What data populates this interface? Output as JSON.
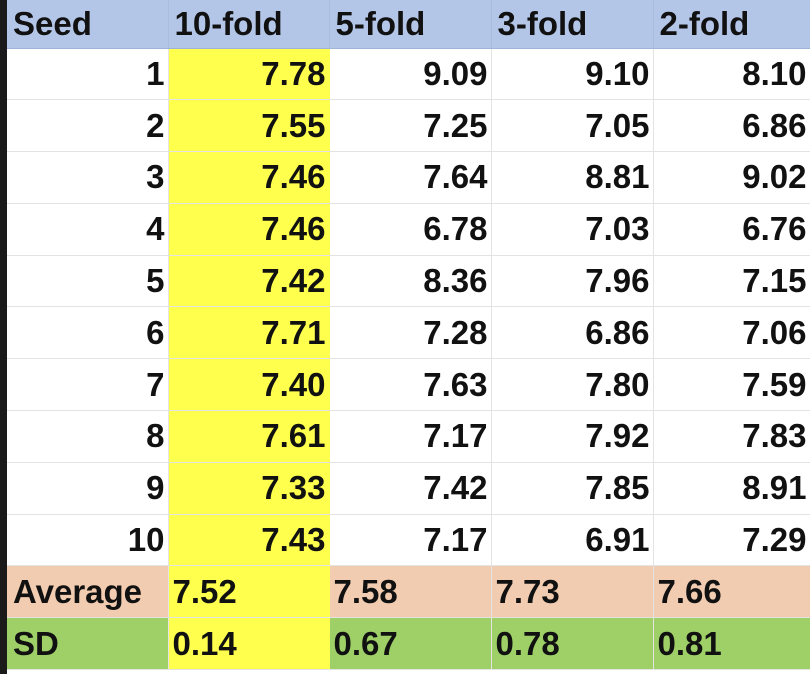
{
  "table": {
    "headers": [
      "Seed",
      "10-fold",
      "5-fold",
      "3-fold",
      "2-fold"
    ],
    "rows": [
      [
        "1",
        "7.78",
        "9.09",
        "9.10",
        "8.10"
      ],
      [
        "2",
        "7.55",
        "7.25",
        "7.05",
        "6.86"
      ],
      [
        "3",
        "7.46",
        "7.64",
        "8.81",
        "9.02"
      ],
      [
        "4",
        "7.46",
        "6.78",
        "7.03",
        "6.76"
      ],
      [
        "5",
        "7.42",
        "8.36",
        "7.96",
        "7.15"
      ],
      [
        "6",
        "7.71",
        "7.28",
        "6.86",
        "7.06"
      ],
      [
        "7",
        "7.40",
        "7.63",
        "7.80",
        "7.59"
      ],
      [
        "8",
        "7.61",
        "7.17",
        "7.92",
        "7.83"
      ],
      [
        "9",
        "7.33",
        "7.42",
        "7.85",
        "8.91"
      ],
      [
        "10",
        "7.43",
        "7.17",
        "6.91",
        "7.29"
      ]
    ],
    "average": [
      "Average",
      "7.52",
      "7.58",
      "7.73",
      "7.66"
    ],
    "sd": [
      "SD",
      "0.14",
      "0.67",
      "0.78",
      "0.81"
    ]
  },
  "colors": {
    "header_fill": "#b4c6e7",
    "highlight_column_fill": "#ffff4d",
    "average_row_fill": "#f2ccb0",
    "sd_row_fill": "#9ed067"
  }
}
